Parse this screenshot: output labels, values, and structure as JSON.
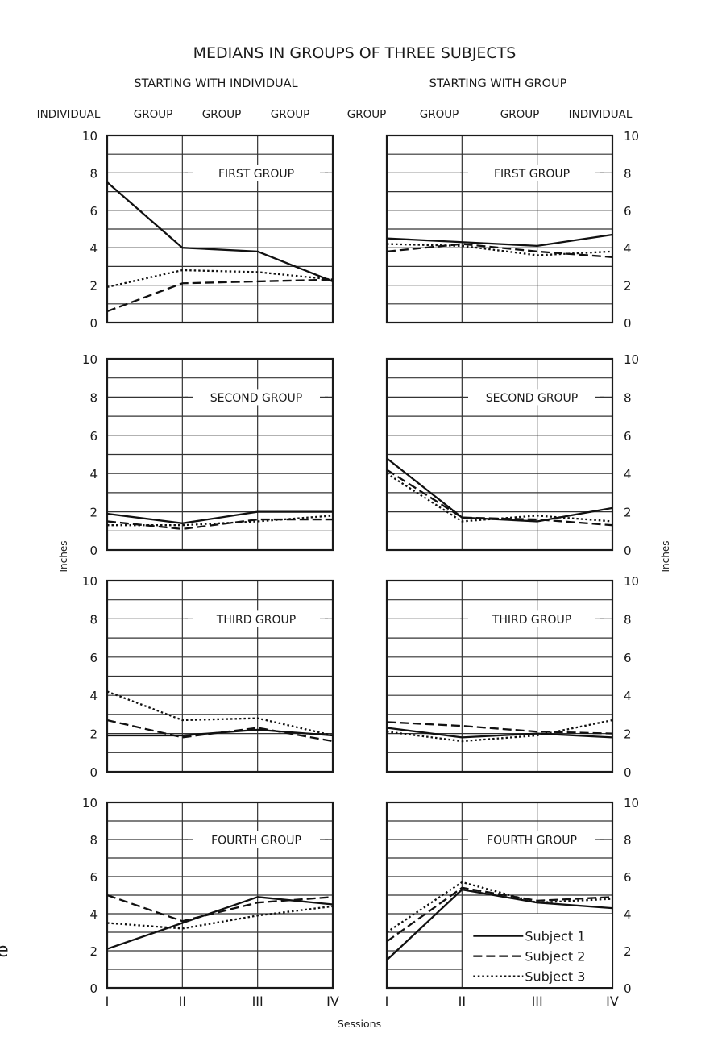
{
  "chart_data": {
    "type": "line",
    "title": "MEDIANS IN GROUPS OF THREE SUBJECTS",
    "column_headers": [
      "STARTING WITH INDIVIDUAL",
      "STARTING WITH GROUP"
    ],
    "condition_labels": {
      "left": [
        "INDIVIDUAL",
        "GROUP",
        "GROUP",
        "GROUP"
      ],
      "right": [
        "GROUP",
        "GROUP",
        "GROUP",
        "INDIVIDUAL"
      ]
    },
    "ylabel": "Inches",
    "xlabel": "Sessions",
    "categories": [
      "I",
      "II",
      "III",
      "IV"
    ],
    "ylim": [
      0,
      10
    ],
    "yticks": [
      "0",
      "2",
      "4",
      "6",
      "8",
      "10"
    ],
    "grid": true,
    "legend": {
      "placement": "bottom-right of last panel",
      "entries": [
        "Subject 1",
        "Subject 2",
        "Subject 3"
      ]
    },
    "series_styles": [
      "solid",
      "dashed",
      "dotted"
    ],
    "panels": [
      {
        "column": "left",
        "label": "FIRST GROUP",
        "series": [
          {
            "name": "Subject 1",
            "values": [
              7.5,
              4.0,
              3.8,
              2.2
            ]
          },
          {
            "name": "Subject 2",
            "values": [
              0.6,
              2.1,
              2.2,
              2.3
            ]
          },
          {
            "name": "Subject 3",
            "values": [
              1.9,
              2.8,
              2.7,
              2.3
            ]
          }
        ]
      },
      {
        "column": "right",
        "label": "FIRST GROUP",
        "series": [
          {
            "name": "Subject 1",
            "values": [
              4.5,
              4.3,
              4.1,
              4.7
            ]
          },
          {
            "name": "Subject 2",
            "values": [
              3.8,
              4.2,
              3.8,
              3.5
            ]
          },
          {
            "name": "Subject 3",
            "values": [
              4.2,
              4.1,
              3.6,
              3.8
            ]
          }
        ]
      },
      {
        "column": "left",
        "label": "SECOND GROUP",
        "series": [
          {
            "name": "Subject 1",
            "values": [
              1.9,
              1.4,
              2.0,
              2.0
            ]
          },
          {
            "name": "Subject 2",
            "values": [
              1.5,
              1.1,
              1.6,
              1.6
            ]
          },
          {
            "name": "Subject 3",
            "values": [
              1.3,
              1.3,
              1.5,
              1.8
            ]
          }
        ]
      },
      {
        "column": "right",
        "label": "SECOND GROUP",
        "series": [
          {
            "name": "Subject 1",
            "values": [
              4.8,
              1.7,
              1.5,
              2.2
            ]
          },
          {
            "name": "Subject 2",
            "values": [
              4.2,
              1.7,
              1.6,
              1.3
            ]
          },
          {
            "name": "Subject 3",
            "values": [
              4.0,
              1.5,
              1.8,
              1.5
            ]
          }
        ]
      },
      {
        "column": "left",
        "label": "THIRD GROUP",
        "series": [
          {
            "name": "Subject 1",
            "values": [
              1.9,
              1.9,
              2.2,
              1.9
            ]
          },
          {
            "name": "Subject 2",
            "values": [
              2.7,
              1.8,
              2.3,
              1.6
            ]
          },
          {
            "name": "Subject 3",
            "values": [
              4.2,
              2.7,
              2.8,
              1.9
            ]
          }
        ]
      },
      {
        "column": "right",
        "label": "THIRD GROUP",
        "series": [
          {
            "name": "Subject 1",
            "values": [
              2.3,
              1.8,
              2.0,
              1.8
            ]
          },
          {
            "name": "Subject 2",
            "values": [
              2.6,
              2.4,
              2.1,
              2.0
            ]
          },
          {
            "name": "Subject 3",
            "values": [
              2.1,
              1.6,
              1.9,
              2.7
            ]
          }
        ]
      },
      {
        "column": "left",
        "label": "FOURTH GROUP",
        "series": [
          {
            "name": "Subject 1",
            "values": [
              2.1,
              3.5,
              4.9,
              4.5
            ]
          },
          {
            "name": "Subject 2",
            "values": [
              5.0,
              3.6,
              4.6,
              4.9
            ]
          },
          {
            "name": "Subject 3",
            "values": [
              3.5,
              3.2,
              3.9,
              4.4
            ]
          }
        ]
      },
      {
        "column": "right",
        "label": "FOURTH GROUP",
        "series": [
          {
            "name": "Subject 1",
            "values": [
              1.5,
              5.3,
              4.6,
              4.3
            ]
          },
          {
            "name": "Subject 2",
            "values": [
              2.5,
              5.4,
              4.7,
              4.9
            ]
          },
          {
            "name": "Subject 3",
            "values": [
              3.0,
              5.7,
              4.6,
              4.8
            ]
          }
        ]
      }
    ],
    "edge_fragment": "e"
  }
}
